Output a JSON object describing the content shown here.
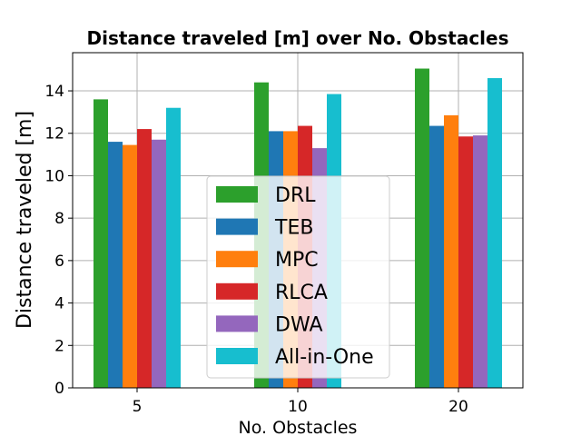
{
  "chart_data": {
    "type": "bar",
    "title": "Distance traveled [m] over No. Obstacles",
    "xlabel": "No. Obstacles",
    "ylabel": "Distance traveled [m]",
    "categories": [
      "5",
      "10",
      "20"
    ],
    "ylim": [
      0,
      15.8
    ],
    "yticks": [
      0,
      2,
      4,
      6,
      8,
      10,
      12,
      14
    ],
    "grid": true,
    "legend_position": "lower-center",
    "series": [
      {
        "name": "DRL",
        "color": "#2ca02c",
        "values": [
          13.6,
          14.4,
          15.05
        ]
      },
      {
        "name": "TEB",
        "color": "#1f77b4",
        "values": [
          11.6,
          12.1,
          12.35
        ]
      },
      {
        "name": "MPC",
        "color": "#ff7f0e",
        "values": [
          11.45,
          12.1,
          12.85
        ]
      },
      {
        "name": "RLCA",
        "color": "#d62728",
        "values": [
          12.2,
          12.35,
          11.85
        ]
      },
      {
        "name": "DWA",
        "color": "#9467bd",
        "values": [
          11.7,
          11.3,
          11.9
        ]
      },
      {
        "name": "All-in-One",
        "color": "#17becf",
        "values": [
          13.2,
          13.85,
          14.6
        ]
      }
    ]
  }
}
